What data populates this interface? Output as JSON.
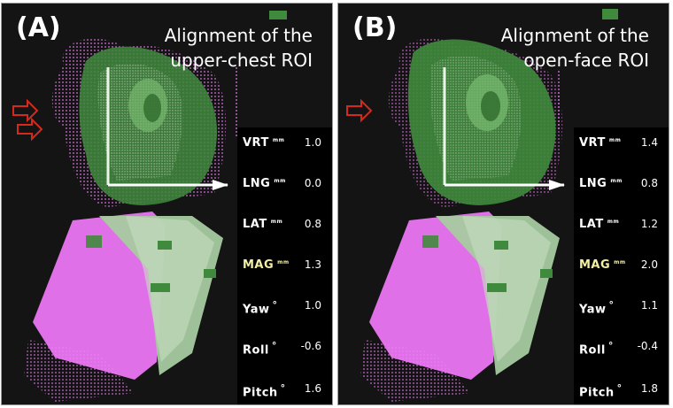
{
  "panels": [
    {
      "label": "(A)",
      "title": [
        "Alignment of the",
        "upper-chest ROI"
      ],
      "params": [
        {
          "name": "VRT",
          "unit": "mm",
          "value": "1.0",
          "highlight": false
        },
        {
          "name": "LNG",
          "unit": "mm",
          "value": "0.0",
          "highlight": false
        },
        {
          "name": "LAT",
          "unit": "mm",
          "value": "0.8",
          "highlight": false
        },
        {
          "name": "MAG",
          "unit": "mm",
          "value": "1.3",
          "highlight": true
        },
        {
          "name": "Yaw",
          "unit": "°",
          "value": "1.0",
          "highlight": false
        },
        {
          "name": "Roll",
          "unit": "°",
          "value": "-0.6",
          "highlight": false
        },
        {
          "name": "Pitch",
          "unit": "°",
          "value": "1.6",
          "highlight": false
        }
      ],
      "arrows": 2
    },
    {
      "label": "(B)",
      "title": [
        "Alignment of the",
        "open-face ROI"
      ],
      "params": [
        {
          "name": "VRT",
          "unit": "mm",
          "value": "1.4",
          "highlight": false
        },
        {
          "name": "LNG",
          "unit": "mm",
          "value": "0.8",
          "highlight": false
        },
        {
          "name": "LAT",
          "unit": "mm",
          "value": "1.2",
          "highlight": false
        },
        {
          "name": "MAG",
          "unit": "mm",
          "value": "2.0",
          "highlight": true
        },
        {
          "name": "Yaw",
          "unit": "°",
          "value": "1.1",
          "highlight": false
        },
        {
          "name": "Roll",
          "unit": "°",
          "value": "-0.4",
          "highlight": false
        },
        {
          "name": "Pitch",
          "unit": "°",
          "value": "1.8",
          "highlight": false
        }
      ],
      "arrows": 1
    }
  ],
  "colors": {
    "background": "#141414",
    "surface_green": "#3f8a3c",
    "surface_magenta": "#e070e8",
    "mag_highlight": "#f3f0a6",
    "arrow": "#d42a1e"
  }
}
